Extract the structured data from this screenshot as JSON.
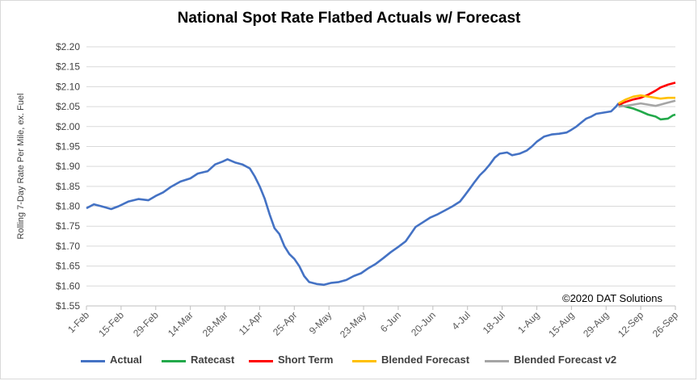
{
  "chart_data": {
    "type": "line",
    "title": "National Spot Rate Flatbed Actuals w/ Forecast",
    "ylabel": "Rolling 7-Day Rate Per Mile, ex. Fuel",
    "xlabel": "",
    "ylim": [
      1.55,
      2.2
    ],
    "yticks": [
      "$1.55",
      "$1.60",
      "$1.65",
      "$1.70",
      "$1.75",
      "$1.80",
      "$1.85",
      "$1.90",
      "$1.95",
      "$2.00",
      "$2.05",
      "$2.10",
      "$2.15",
      "$2.20"
    ],
    "xticks": [
      "1-Feb",
      "15-Feb",
      "29-Feb",
      "14-Mar",
      "28-Mar",
      "11-Apr",
      "25-Apr",
      "9-May",
      "23-May",
      "6-Jun",
      "20-Jun",
      "4-Jul",
      "18-Jul",
      "1-Aug",
      "15-Aug",
      "29-Aug",
      "12-Sep",
      "26-Sep"
    ],
    "x_day_range": [
      0,
      238
    ],
    "annotation": "©2020 DAT Solutions",
    "legend_position": "bottom",
    "grid": "horizontal",
    "series": [
      {
        "name": "Actual",
        "color": "#4472c4",
        "points": [
          [
            0,
            1.795
          ],
          [
            3,
            1.805
          ],
          [
            6,
            1.8
          ],
          [
            10,
            1.793
          ],
          [
            13,
            1.8
          ],
          [
            17,
            1.812
          ],
          [
            21,
            1.818
          ],
          [
            25,
            1.815
          ],
          [
            28,
            1.826
          ],
          [
            31,
            1.835
          ],
          [
            34,
            1.848
          ],
          [
            38,
            1.862
          ],
          [
            42,
            1.87
          ],
          [
            45,
            1.882
          ],
          [
            49,
            1.888
          ],
          [
            52,
            1.905
          ],
          [
            55,
            1.912
          ],
          [
            57,
            1.918
          ],
          [
            60,
            1.91
          ],
          [
            63,
            1.905
          ],
          [
            66,
            1.895
          ],
          [
            68,
            1.875
          ],
          [
            70,
            1.85
          ],
          [
            72,
            1.82
          ],
          [
            74,
            1.78
          ],
          [
            76,
            1.745
          ],
          [
            78,
            1.73
          ],
          [
            80,
            1.7
          ],
          [
            82,
            1.68
          ],
          [
            84,
            1.668
          ],
          [
            86,
            1.65
          ],
          [
            88,
            1.625
          ],
          [
            90,
            1.61
          ],
          [
            93,
            1.605
          ],
          [
            96,
            1.603
          ],
          [
            99,
            1.608
          ],
          [
            102,
            1.61
          ],
          [
            105,
            1.615
          ],
          [
            108,
            1.625
          ],
          [
            111,
            1.632
          ],
          [
            114,
            1.645
          ],
          [
            117,
            1.656
          ],
          [
            120,
            1.67
          ],
          [
            123,
            1.685
          ],
          [
            126,
            1.698
          ],
          [
            129,
            1.712
          ],
          [
            131,
            1.73
          ],
          [
            133,
            1.748
          ],
          [
            136,
            1.76
          ],
          [
            139,
            1.772
          ],
          [
            142,
            1.78
          ],
          [
            145,
            1.79
          ],
          [
            148,
            1.8
          ],
          [
            151,
            1.812
          ],
          [
            153,
            1.828
          ],
          [
            155,
            1.845
          ],
          [
            157,
            1.862
          ],
          [
            159,
            1.878
          ],
          [
            161,
            1.89
          ],
          [
            163,
            1.905
          ],
          [
            165,
            1.922
          ],
          [
            167,
            1.932
          ],
          [
            170,
            1.935
          ],
          [
            172,
            1.928
          ],
          [
            175,
            1.932
          ],
          [
            178,
            1.94
          ],
          [
            180,
            1.95
          ],
          [
            182,
            1.962
          ],
          [
            185,
            1.975
          ],
          [
            188,
            1.98
          ],
          [
            191,
            1.982
          ],
          [
            194,
            1.985
          ],
          [
            196,
            1.992
          ],
          [
            198,
            2.0
          ],
          [
            200,
            2.01
          ],
          [
            202,
            2.02
          ],
          [
            204,
            2.025
          ],
          [
            206,
            2.032
          ],
          [
            209,
            2.035
          ],
          [
            212,
            2.038
          ],
          [
            214,
            2.05
          ],
          [
            215,
            2.058
          ]
        ]
      },
      {
        "name": "Ratecast",
        "color": "#22a94a",
        "points": [
          [
            215,
            2.055
          ],
          [
            218,
            2.05
          ],
          [
            221,
            2.045
          ],
          [
            224,
            2.038
          ],
          [
            227,
            2.03
          ],
          [
            230,
            2.025
          ],
          [
            232,
            2.018
          ],
          [
            235,
            2.02
          ],
          [
            237,
            2.028
          ],
          [
            238,
            2.03
          ]
        ]
      },
      {
        "name": "Short Term",
        "color": "#ff0000",
        "points": [
          [
            215,
            2.055
          ],
          [
            218,
            2.062
          ],
          [
            221,
            2.068
          ],
          [
            224,
            2.072
          ],
          [
            227,
            2.08
          ],
          [
            230,
            2.09
          ],
          [
            232,
            2.098
          ],
          [
            235,
            2.105
          ],
          [
            238,
            2.11
          ]
        ]
      },
      {
        "name": "Blended Forecast",
        "color": "#ffc000",
        "points": [
          [
            215,
            2.058
          ],
          [
            218,
            2.068
          ],
          [
            221,
            2.075
          ],
          [
            224,
            2.078
          ],
          [
            227,
            2.075
          ],
          [
            230,
            2.072
          ],
          [
            232,
            2.07
          ],
          [
            235,
            2.072
          ],
          [
            238,
            2.072
          ]
        ]
      },
      {
        "name": "Blended Forecast v2",
        "color": "#a5a5a5",
        "points": [
          [
            215,
            2.05
          ],
          [
            218,
            2.052
          ],
          [
            221,
            2.055
          ],
          [
            224,
            2.058
          ],
          [
            227,
            2.055
          ],
          [
            230,
            2.052
          ],
          [
            232,
            2.055
          ],
          [
            235,
            2.06
          ],
          [
            238,
            2.065
          ]
        ]
      }
    ]
  }
}
